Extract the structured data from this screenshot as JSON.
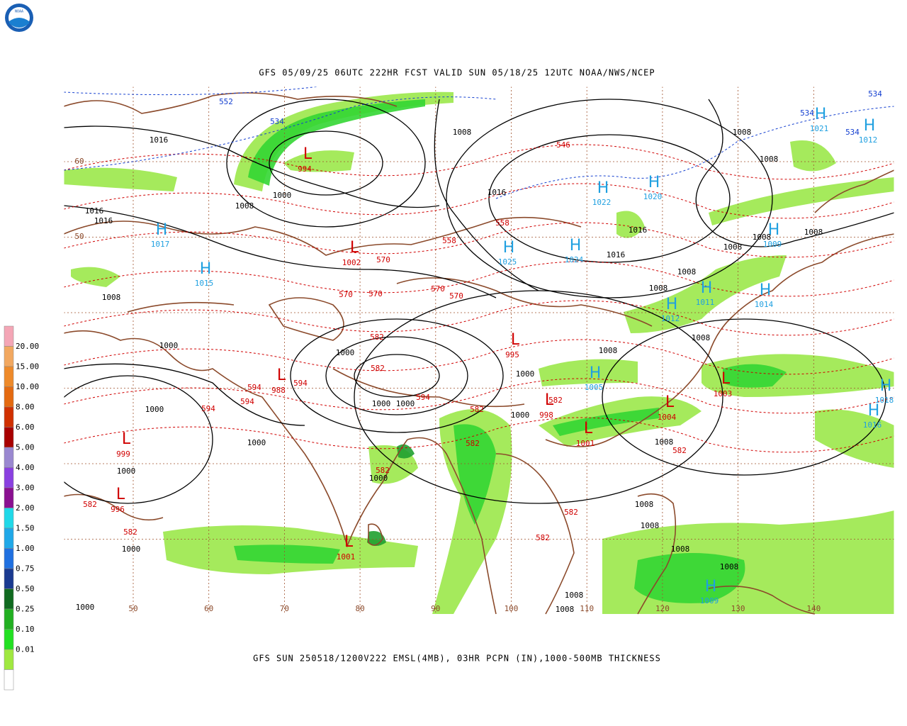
{
  "logo": "NOAA",
  "header": {
    "title": "GFS 05/09/25 06UTC 222HR FCST VALID SUN 05/18/25 12UTC NOAA/NWS/NCEP"
  },
  "footer": {
    "caption": "GFS SUN 250518/1200V222 EMSL(4MB), 03HR PCPN (IN),1000-500MB THICKNESS"
  },
  "legend": {
    "labels": [
      "20.00",
      "15.00",
      "10.00",
      "8.00",
      "6.00",
      "5.00",
      "4.00",
      "3.00",
      "2.00",
      "1.50",
      "1.00",
      "0.75",
      "0.50",
      "0.25",
      "0.10",
      "0.01"
    ]
  },
  "map": {
    "lon_labels": [
      "50",
      "60",
      "70",
      "80",
      "90",
      "100",
      "110",
      "120",
      "130",
      "140"
    ],
    "lat_labels": [
      "60",
      "50"
    ],
    "highs": [
      {
        "symbol": "H",
        "value": "1017"
      },
      {
        "symbol": "H",
        "value": "1015"
      },
      {
        "symbol": "H",
        "value": "1022"
      },
      {
        "symbol": "H",
        "value": "1020"
      },
      {
        "symbol": "H",
        "value": "1025"
      },
      {
        "symbol": "H",
        "value": "1024"
      },
      {
        "symbol": "H",
        "value": "1011"
      },
      {
        "symbol": "H",
        "value": "1014"
      },
      {
        "symbol": "H",
        "value": "1012"
      },
      {
        "symbol": "H",
        "value": "1009"
      },
      {
        "symbol": "H",
        "value": "1018"
      },
      {
        "symbol": "H",
        "value": "1016"
      },
      {
        "symbol": "H",
        "value": "1021"
      },
      {
        "symbol": "H",
        "value": "1012"
      },
      {
        "symbol": "H",
        "value": "1005"
      },
      {
        "symbol": "H",
        "value": "1009"
      }
    ],
    "lows": [
      {
        "symbol": "L",
        "value": "994"
      },
      {
        "symbol": "L",
        "value": "1002"
      },
      {
        "symbol": "L",
        "value": "995"
      },
      {
        "symbol": "L",
        "value": "999"
      },
      {
        "symbol": "L",
        "value": "988"
      },
      {
        "symbol": "L",
        "value": "1001"
      },
      {
        "symbol": "L",
        "value": "1003"
      },
      {
        "symbol": "L",
        "value": "1004"
      },
      {
        "symbol": "L",
        "value": "1001"
      },
      {
        "symbol": "L",
        "value": "996"
      },
      {
        "symbol": "L",
        "value": "998"
      }
    ],
    "isobar_labels": [
      "1016",
      "1008",
      "1008",
      "1008",
      "1016",
      "1008",
      "1000",
      "1016",
      "1016",
      "1016",
      "1016",
      "1008",
      "1008",
      "1008",
      "1008",
      "1008",
      "1008",
      "1000",
      "1000",
      "1000",
      "1008",
      "1008",
      "1000",
      "1000",
      "1000",
      "1000",
      "1000",
      "1008",
      "1008",
      "1008",
      "1008",
      "1008",
      "1008",
      "1008",
      "1000",
      "1000",
      "1000",
      "1000"
    ],
    "thickness_labels": [
      "546",
      "558",
      "558",
      "570",
      "570",
      "570",
      "570",
      "582",
      "582",
      "582",
      "582",
      "582",
      "582",
      "582",
      "582",
      "594",
      "594",
      "594",
      "594",
      "594",
      "582",
      "582",
      "570",
      "582"
    ],
    "cold_thickness_labels": [
      "552",
      "534",
      "534",
      "534",
      "534"
    ]
  }
}
